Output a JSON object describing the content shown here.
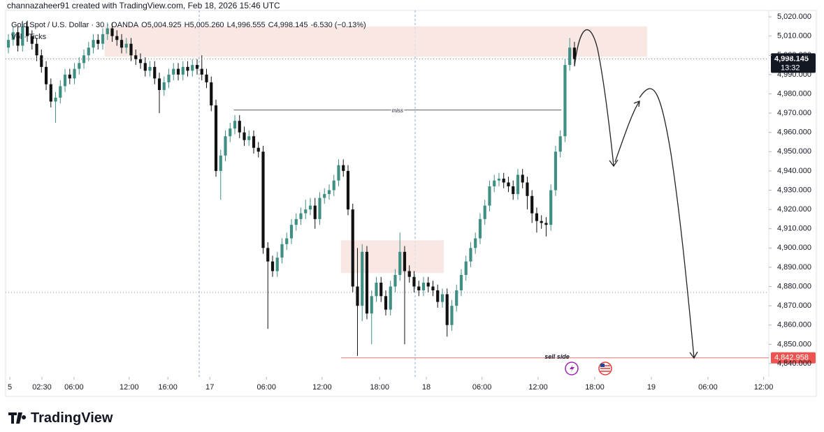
{
  "header": "channazaheer91 created with TradingView.com, Feb 18, 2026 15:46 UTC",
  "brand": "TradingView",
  "chart_data": {
    "type": "candlestick",
    "legend": {
      "symbol": "Gold Spot / U.S. Dollar · 30 · OANDA",
      "open": "O5,004.925",
      "high": "H5,005.260",
      "low": "L4,996.555",
      "close": "C4,998.145",
      "change": "-6.530 (−0.13%)",
      "volume": "Vol · Ticks"
    },
    "up_color": "#3f8f84",
    "down_color": "#111111",
    "open": [
      5004,
      5008,
      5012,
      5005,
      5015,
      5010,
      5006,
      5000,
      4994,
      4985,
      4976,
      4978,
      4984,
      4990,
      4988,
      4993,
      4996,
      5000,
      5004,
      5008,
      5006,
      5011,
      5014,
      5010,
      5008,
      5004,
      5006,
      5000,
      4998,
      4996,
      4992,
      4994,
      4988,
      4982,
      4986,
      4990,
      4993,
      4990,
      4994,
      4992,
      4995,
      4993,
      4990,
      4986,
      4974,
      4940,
      4948,
      4958,
      4962,
      4966,
      4960,
      4956,
      4958,
      4952,
      4950,
      4900,
      4893,
      4888,
      4895,
      4902,
      4905,
      4912,
      4915,
      4918,
      4920,
      4922,
      4915,
      4926,
      4928,
      4930,
      4935,
      4943,
      4940,
      4920,
      4880,
      4870,
      4898,
      4866,
      4875,
      4882,
      4875,
      4868,
      4880,
      4886,
      4898,
      4888,
      4885,
      4880,
      4878,
      4882,
      4880,
      4878,
      4872,
      4876,
      4860,
      4870,
      4878,
      4886,
      4893,
      4900,
      4905,
      4915,
      4922,
      4932,
      4935,
      4936,
      4934,
      4932,
      4928,
      4938,
      4934,
      4927,
      4918,
      4914,
      4913,
      4912,
      4930,
      4950,
      4958,
      4995,
      5004
    ],
    "high": [
      5011,
      5015,
      5015,
      5018,
      5018,
      5013,
      5009,
      5003,
      4997,
      4988,
      4981,
      4987,
      4993,
      4993,
      4996,
      4999,
      5003,
      5007,
      5011,
      5011,
      5014,
      5017,
      5017,
      5013,
      5011,
      5009,
      5009,
      5003,
      5001,
      4999,
      4997,
      4997,
      4991,
      4989,
      4993,
      4996,
      4996,
      4997,
      4997,
      4998,
      4998,
      5000,
      4993,
      4989,
      4977,
      4951,
      4961,
      4965,
      4969,
      4969,
      4963,
      4961,
      4961,
      4955,
      4953,
      4903,
      4896,
      4898,
      4905,
      4908,
      4915,
      4918,
      4921,
      4925,
      4926,
      4926,
      4929,
      4931,
      4933,
      4938,
      4946,
      4946,
      4943,
      4923,
      4900,
      4902,
      4901,
      4878,
      4885,
      4885,
      4878,
      4883,
      4889,
      4908,
      4901,
      4891,
      4888,
      4883,
      4885,
      4885,
      4883,
      4881,
      4879,
      4879,
      4873,
      4881,
      4889,
      4896,
      4903,
      4908,
      4918,
      4925,
      4935,
      4938,
      4939,
      4939,
      4937,
      4935,
      4941,
      4941,
      4937,
      4930,
      4921,
      4917,
      4916,
      4933,
      4953,
      4961,
      4998,
      5009,
      5007
    ],
    "low": [
      5001,
      5005,
      5002,
      5002,
      5007,
      5003,
      4997,
      4991,
      4982,
      4973,
      4965,
      4975,
      4981,
      4985,
      4985,
      4990,
      4993,
      4997,
      5001,
      5003,
      5003,
      5008,
      5007,
      5005,
      5001,
      5001,
      4997,
      4995,
      4993,
      4989,
      4989,
      4985,
      4970,
      4979,
      4983,
      4987,
      4987,
      4987,
      4989,
      4989,
      4990,
      4987,
      4983,
      4971,
      4937,
      4925,
      4945,
      4955,
      4959,
      4957,
      4953,
      4953,
      4949,
      4947,
      4897,
      4858,
      4885,
      4885,
      4892,
      4899,
      4902,
      4909,
      4912,
      4915,
      4917,
      4910,
      4912,
      4923,
      4925,
      4927,
      4932,
      4937,
      4917,
      4877,
      4844,
      4862,
      4863,
      4850,
      4872,
      4872,
      4865,
      4865,
      4877,
      4883,
      4850,
      4882,
      4877,
      4875,
      4875,
      4877,
      4875,
      4869,
      4869,
      4854,
      4857,
      4867,
      4875,
      4883,
      4890,
      4897,
      4902,
      4912,
      4919,
      4929,
      4932,
      4931,
      4929,
      4925,
      4925,
      4931,
      4920,
      4913,
      4908,
      4910,
      4906,
      4909,
      4927,
      4947,
      4955,
      4992,
      4995
    ],
    "close": [
      5008,
      5012,
      5005,
      5015,
      5010,
      5006,
      5000,
      4994,
      4985,
      4976,
      4978,
      4984,
      4990,
      4988,
      4993,
      4996,
      5000,
      5004,
      5008,
      5006,
      5011,
      5014,
      5010,
      5008,
      5004,
      5006,
      5000,
      4998,
      4996,
      4992,
      4994,
      4988,
      4982,
      4986,
      4990,
      4993,
      4990,
      4994,
      4992,
      4995,
      4993,
      4990,
      4986,
      4974,
      4940,
      4948,
      4958,
      4962,
      4966,
      4960,
      4956,
      4958,
      4952,
      4950,
      4900,
      4893,
      4888,
      4895,
      4902,
      4905,
      4912,
      4915,
      4918,
      4920,
      4922,
      4915,
      4926,
      4928,
      4930,
      4935,
      4943,
      4940,
      4920,
      4880,
      4870,
      4898,
      4866,
      4875,
      4882,
      4875,
      4868,
      4880,
      4886,
      4898,
      4888,
      4885,
      4880,
      4878,
      4882,
      4880,
      4878,
      4872,
      4876,
      4860,
      4870,
      4878,
      4886,
      4893,
      4900,
      4905,
      4915,
      4922,
      4932,
      4935,
      4936,
      4934,
      4932,
      4928,
      4938,
      4934,
      4927,
      4918,
      4914,
      4913,
      4912,
      4930,
      4950,
      4958,
      4995,
      5004,
      4998
    ],
    "xlim": [
      -0.6,
      161.2
    ],
    "xticks": [
      {
        "value": 0.3,
        "label": "5"
      },
      {
        "value": 7.1,
        "label": "02:30"
      },
      {
        "value": 13.9,
        "label": "06:00"
      },
      {
        "value": 25.6,
        "label": "12:00"
      },
      {
        "value": 33.8,
        "label": "16:00"
      },
      {
        "value": 42.7,
        "label": "17"
      },
      {
        "value": 54.7,
        "label": "06:00"
      },
      {
        "value": 66.5,
        "label": "12:00"
      },
      {
        "value": 78.7,
        "label": "18:00"
      },
      {
        "value": 88.6,
        "label": "18"
      },
      {
        "value": 100.4,
        "label": "06:00"
      },
      {
        "value": 112.3,
        "label": "12:00"
      },
      {
        "value": 124.3,
        "label": "18:00"
      },
      {
        "value": 136.3,
        "label": "19"
      },
      {
        "value": 148.3,
        "label": "06:00"
      },
      {
        "value": 160.1,
        "label": "12:00"
      }
    ],
    "ylim": [
      4833.1,
      5025.1
    ],
    "yticks": [
      {
        "value": 4840,
        "label": "4,840.000"
      },
      {
        "value": 4850,
        "label": "4,850.000"
      },
      {
        "value": 4860,
        "label": "4,860.000"
      },
      {
        "value": 4870,
        "label": "4,870.000"
      },
      {
        "value": 4880,
        "label": "4,880.000"
      },
      {
        "value": 4890,
        "label": "4,890.000"
      },
      {
        "value": 4900,
        "label": "4,900.000"
      },
      {
        "value": 4910,
        "label": "4,910.000"
      },
      {
        "value": 4920,
        "label": "4,920.000"
      },
      {
        "value": 4930,
        "label": "4,930.000"
      },
      {
        "value": 4940,
        "label": "4,940.000"
      },
      {
        "value": 4950,
        "label": "4,950.000"
      },
      {
        "value": 4960,
        "label": "4,960.000"
      },
      {
        "value": 4970,
        "label": "4,970.000"
      },
      {
        "value": 4980,
        "label": "4,980.000"
      },
      {
        "value": 4990,
        "label": "4,990.000"
      },
      {
        "value": 5000,
        "label": "5,000.000"
      },
      {
        "value": 5010,
        "label": "5,010.000"
      },
      {
        "value": 5020,
        "label": "5,020.000"
      }
    ],
    "last_price": {
      "value": 4998.145,
      "label": "4,998.145",
      "countdown": "13:32"
    },
    "zones": [
      {
        "x": [
          20.4,
          135.4
        ],
        "y": [
          4999.3,
          5015
        ]
      },
      {
        "x": [
          70.5,
          92.3
        ],
        "y": [
          4887,
          4904
        ]
      }
    ],
    "miss": {
      "text": "miss",
      "x": [
        47.8,
        117.2
      ],
      "value": 4971.6
    },
    "sell_side": {
      "text": "sell side",
      "x": 70.5,
      "value": 4842.958,
      "label": "4,842.958"
    }
  }
}
